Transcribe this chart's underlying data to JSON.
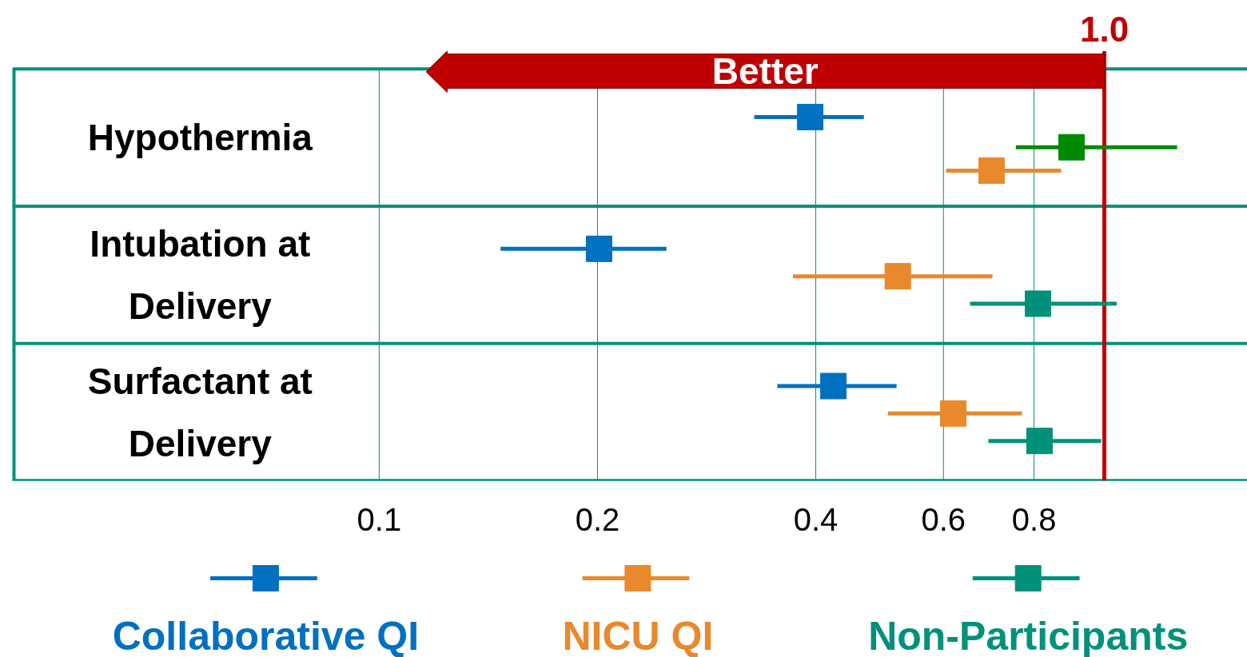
{
  "chart_data": {
    "type": "scatter",
    "orientation": "horizontal",
    "log": "x",
    "categories": [
      "Hypothermia",
      "Intubation at Delivery",
      "Surfactant at Delivery"
    ],
    "xlim": [
      0.0312,
      1.575
    ],
    "xticks": [
      0.1,
      0.2,
      0.4,
      0.6,
      0.8
    ],
    "grid": "x",
    "marker": "square",
    "legend": "bottom",
    "ref_lines": [
      {
        "axis": "x",
        "value": 1.0,
        "label": "1.0",
        "color": "#c00000"
      }
    ],
    "annotations": [
      "Better"
    ],
    "series": [
      {
        "name": "Collaborative QI",
        "color": "#0070c0",
        "values": [
          0.393,
          0.201,
          0.423
        ],
        "errors": [
          [
            0.329,
            0.466
          ],
          [
            0.147,
            0.249
          ],
          [
            0.354,
            0.517
          ]
        ]
      },
      {
        "name": "NICU QI",
        "color": "#e8892b",
        "values": [
          0.699,
          0.519,
          0.619
        ],
        "errors": [
          [
            0.605,
            0.872
          ],
          [
            0.372,
            0.701
          ],
          [
            0.503,
            0.77
          ]
        ]
      },
      {
        "name": "Non-Participants",
        "color": "#00917a",
        "colors": [
          "#008a00",
          "#00917a",
          "#00917a"
        ],
        "values": [
          0.901,
          0.81,
          0.814
        ],
        "errors": [
          [
            0.755,
            1.26
          ],
          [
            0.653,
            1.04
          ],
          [
            0.692,
            0.99
          ]
        ]
      }
    ]
  }
}
